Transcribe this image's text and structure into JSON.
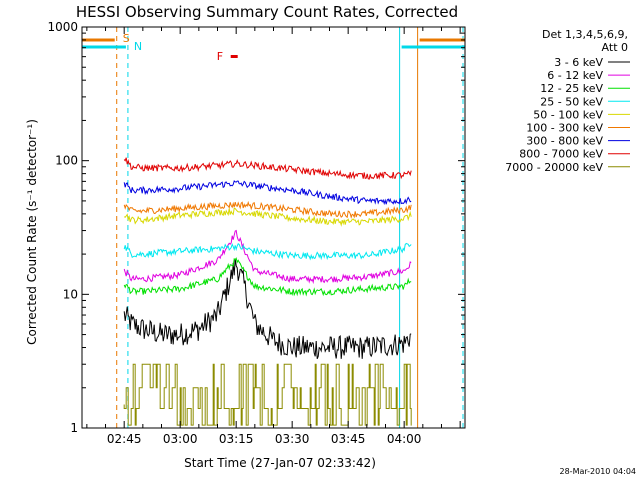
{
  "chart_data": {
    "type": "line",
    "title": "HESSI Observing Summary Count Rates, Corrected",
    "xlabel": "Start Time (27-Jan-07 02:33:42)",
    "ylabel": "Corrected Count Rate (s⁻¹ detector⁻¹)",
    "y_scale": "log",
    "ylim": [
      1,
      1000
    ],
    "y_ticks": [
      "1",
      "10",
      "100",
      "1000"
    ],
    "x_ticks": [
      "02:45",
      "03:00",
      "03:15",
      "03:30",
      "03:45",
      "04:00"
    ],
    "x_tick_minutes": [
      165,
      180,
      195,
      210,
      225,
      240
    ],
    "xlim_minutes": [
      153.7,
      256.3
    ],
    "legend_header": [
      "Det 1,3,4,5,6,9,",
      "Att 0"
    ],
    "legend_position": "right",
    "stamp": "28-Mar-2010 04:04",
    "flag_markers": [
      {
        "label": "S",
        "minute": 163,
        "color": "#e87800"
      },
      {
        "label": "N",
        "minute": 166,
        "color": "#00d8e8"
      },
      {
        "label": "F",
        "minute": 193,
        "color": "#e00000"
      }
    ],
    "data_start_minute": 165,
    "data_end_minute": 242,
    "series": [
      {
        "name": "3 - 6 keV",
        "color": "#000000",
        "values": [
          [
            165,
            7
          ],
          [
            167,
            6
          ],
          [
            170,
            5.5
          ],
          [
            175,
            5
          ],
          [
            180,
            5
          ],
          [
            185,
            5.5
          ],
          [
            190,
            7
          ],
          [
            193,
            12
          ],
          [
            195,
            17
          ],
          [
            197,
            12
          ],
          [
            200,
            6
          ],
          [
            205,
            4.5
          ],
          [
            210,
            4
          ],
          [
            220,
            4
          ],
          [
            230,
            4
          ],
          [
            240,
            4.3
          ],
          [
            242,
            5
          ]
        ]
      },
      {
        "name": "6 - 12 keV",
        "color": "#e000e0",
        "values": [
          [
            165,
            15
          ],
          [
            167,
            13
          ],
          [
            170,
            13
          ],
          [
            180,
            14
          ],
          [
            190,
            18
          ],
          [
            193,
            24
          ],
          [
            195,
            29
          ],
          [
            197,
            22
          ],
          [
            200,
            15
          ],
          [
            210,
            13
          ],
          [
            220,
            13
          ],
          [
            230,
            13.5
          ],
          [
            240,
            15
          ],
          [
            242,
            17
          ]
        ]
      },
      {
        "name": "12 - 25 keV",
        "color": "#00e000",
        "values": [
          [
            165,
            12
          ],
          [
            167,
            10.5
          ],
          [
            170,
            10.5
          ],
          [
            180,
            11
          ],
          [
            190,
            13
          ],
          [
            193,
            16
          ],
          [
            195,
            18
          ],
          [
            197,
            15
          ],
          [
            200,
            11.5
          ],
          [
            210,
            10.5
          ],
          [
            220,
            10.5
          ],
          [
            230,
            11
          ],
          [
            240,
            11.5
          ],
          [
            242,
            13
          ]
        ]
      },
      {
        "name": "25 - 50 keV",
        "color": "#00e8f0",
        "values": [
          [
            165,
            23
          ],
          [
            167,
            20
          ],
          [
            170,
            20
          ],
          [
            180,
            21
          ],
          [
            190,
            22
          ],
          [
            195,
            23
          ],
          [
            200,
            21
          ],
          [
            210,
            19.5
          ],
          [
            220,
            19.5
          ],
          [
            230,
            19.5
          ],
          [
            240,
            22
          ],
          [
            242,
            25
          ]
        ]
      },
      {
        "name": "50 - 100 keV",
        "color": "#d8d800",
        "values": [
          [
            165,
            40
          ],
          [
            167,
            36
          ],
          [
            170,
            36
          ],
          [
            180,
            39
          ],
          [
            190,
            41
          ],
          [
            195,
            42
          ],
          [
            200,
            40
          ],
          [
            210,
            37
          ],
          [
            220,
            35
          ],
          [
            230,
            35
          ],
          [
            240,
            37
          ],
          [
            242,
            39
          ]
        ]
      },
      {
        "name": "100 - 300 keV",
        "color": "#f07800",
        "values": [
          [
            165,
            47
          ],
          [
            167,
            42
          ],
          [
            170,
            42
          ],
          [
            180,
            44
          ],
          [
            190,
            46
          ],
          [
            195,
            47
          ],
          [
            200,
            46
          ],
          [
            210,
            43
          ],
          [
            220,
            40
          ],
          [
            230,
            40
          ],
          [
            240,
            43
          ],
          [
            242,
            45
          ]
        ]
      },
      {
        "name": "300 - 800 keV",
        "color": "#0000e0",
        "values": [
          [
            165,
            68
          ],
          [
            167,
            60
          ],
          [
            170,
            60
          ],
          [
            180,
            62
          ],
          [
            190,
            66
          ],
          [
            195,
            68
          ],
          [
            200,
            65
          ],
          [
            210,
            60
          ],
          [
            220,
            54
          ],
          [
            230,
            50
          ],
          [
            240,
            50
          ],
          [
            242,
            52
          ]
        ]
      },
      {
        "name": "800 - 7000 keV",
        "color": "#e00000",
        "values": [
          [
            165,
            105
          ],
          [
            167,
            90
          ],
          [
            170,
            88
          ],
          [
            180,
            88
          ],
          [
            190,
            92
          ],
          [
            195,
            95
          ],
          [
            200,
            92
          ],
          [
            210,
            86
          ],
          [
            220,
            80
          ],
          [
            230,
            77
          ],
          [
            240,
            78
          ],
          [
            242,
            80
          ]
        ]
      },
      {
        "name": "7000 - 20000 keV",
        "color": "#8c8c00",
        "values": [
          [
            165,
            1.5
          ],
          [
            170,
            2
          ],
          [
            180,
            2
          ],
          [
            190,
            2
          ],
          [
            200,
            2
          ],
          [
            210,
            2
          ],
          [
            220,
            2
          ],
          [
            230,
            2
          ],
          [
            240,
            2
          ],
          [
            242,
            2
          ]
        ]
      }
    ]
  }
}
